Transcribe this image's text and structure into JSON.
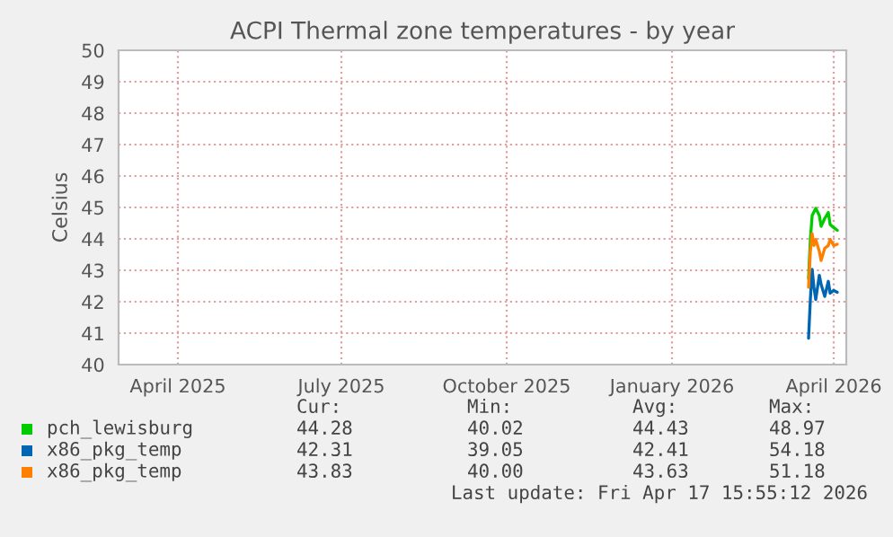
{
  "chart_data": {
    "type": "line",
    "title": "ACPI Thermal zone temperatures - by year",
    "ylabel": "Celsius",
    "xlim": [
      "2025-02-27",
      "2026-04-08"
    ],
    "xticks": [
      {
        "value": "2025-04-01",
        "label": "April 2025"
      },
      {
        "value": "2025-07-01",
        "label": "July 2025"
      },
      {
        "value": "2025-10-01",
        "label": "October 2025"
      },
      {
        "value": "2026-01-01",
        "label": "January 2026"
      },
      {
        "value": "2026-04-01",
        "label": "April 2026"
      }
    ],
    "ylim": [
      40,
      50
    ],
    "yticks": [
      40,
      41,
      42,
      43,
      44,
      45,
      46,
      47,
      48,
      49,
      50
    ],
    "grid": true,
    "legend": "bottom left",
    "line_style": "solid",
    "marker": "none",
    "series": [
      {
        "name": "pch_lewisburg",
        "color": "#00cc00",
        "x": [
          "2026-03-18",
          "2026-03-19",
          "2026-03-20",
          "2026-03-22",
          "2026-03-24",
          "2026-03-25",
          "2026-03-27",
          "2026-03-29",
          "2026-03-30",
          "2026-04-01",
          "2026-04-03"
        ],
        "values": [
          42.74,
          43.98,
          44.74,
          44.97,
          44.74,
          44.4,
          44.65,
          44.84,
          44.46,
          44.36,
          44.27
        ]
      },
      {
        "name": "x86_pkg_temp",
        "color": "#0066b3",
        "x": [
          "2026-03-18",
          "2026-03-19",
          "2026-03-20",
          "2026-03-21",
          "2026-03-22",
          "2026-03-24",
          "2026-03-25",
          "2026-03-27",
          "2026-03-29",
          "2026-03-30",
          "2026-04-01",
          "2026-04-03"
        ],
        "values": [
          40.84,
          42.07,
          43.03,
          42.46,
          42.07,
          42.84,
          42.55,
          42.17,
          42.65,
          42.27,
          42.36,
          42.3
        ]
      },
      {
        "name": "x86_pkg_temp",
        "color": "#ff8000",
        "x": [
          "2026-03-18",
          "2026-03-19",
          "2026-03-20",
          "2026-03-21",
          "2026-03-22",
          "2026-03-24",
          "2026-03-25",
          "2026-03-27",
          "2026-03-29",
          "2026-03-30",
          "2026-04-01",
          "2026-04-03"
        ],
        "values": [
          42.46,
          43.6,
          44.17,
          43.79,
          43.98,
          43.6,
          43.31,
          43.7,
          43.79,
          43.98,
          43.79,
          43.83
        ]
      }
    ],
    "annotations": [
      "Cur:",
      "Min:",
      "Avg:",
      "Max:",
      "44.28",
      "40.02",
      "44.43",
      "48.97",
      "42.31",
      "39.05",
      "42.41",
      "54.18",
      "43.83",
      "40.00",
      "43.63",
      "51.18",
      "Last update: Fri Apr 17 15:55:12 2026"
    ]
  }
}
